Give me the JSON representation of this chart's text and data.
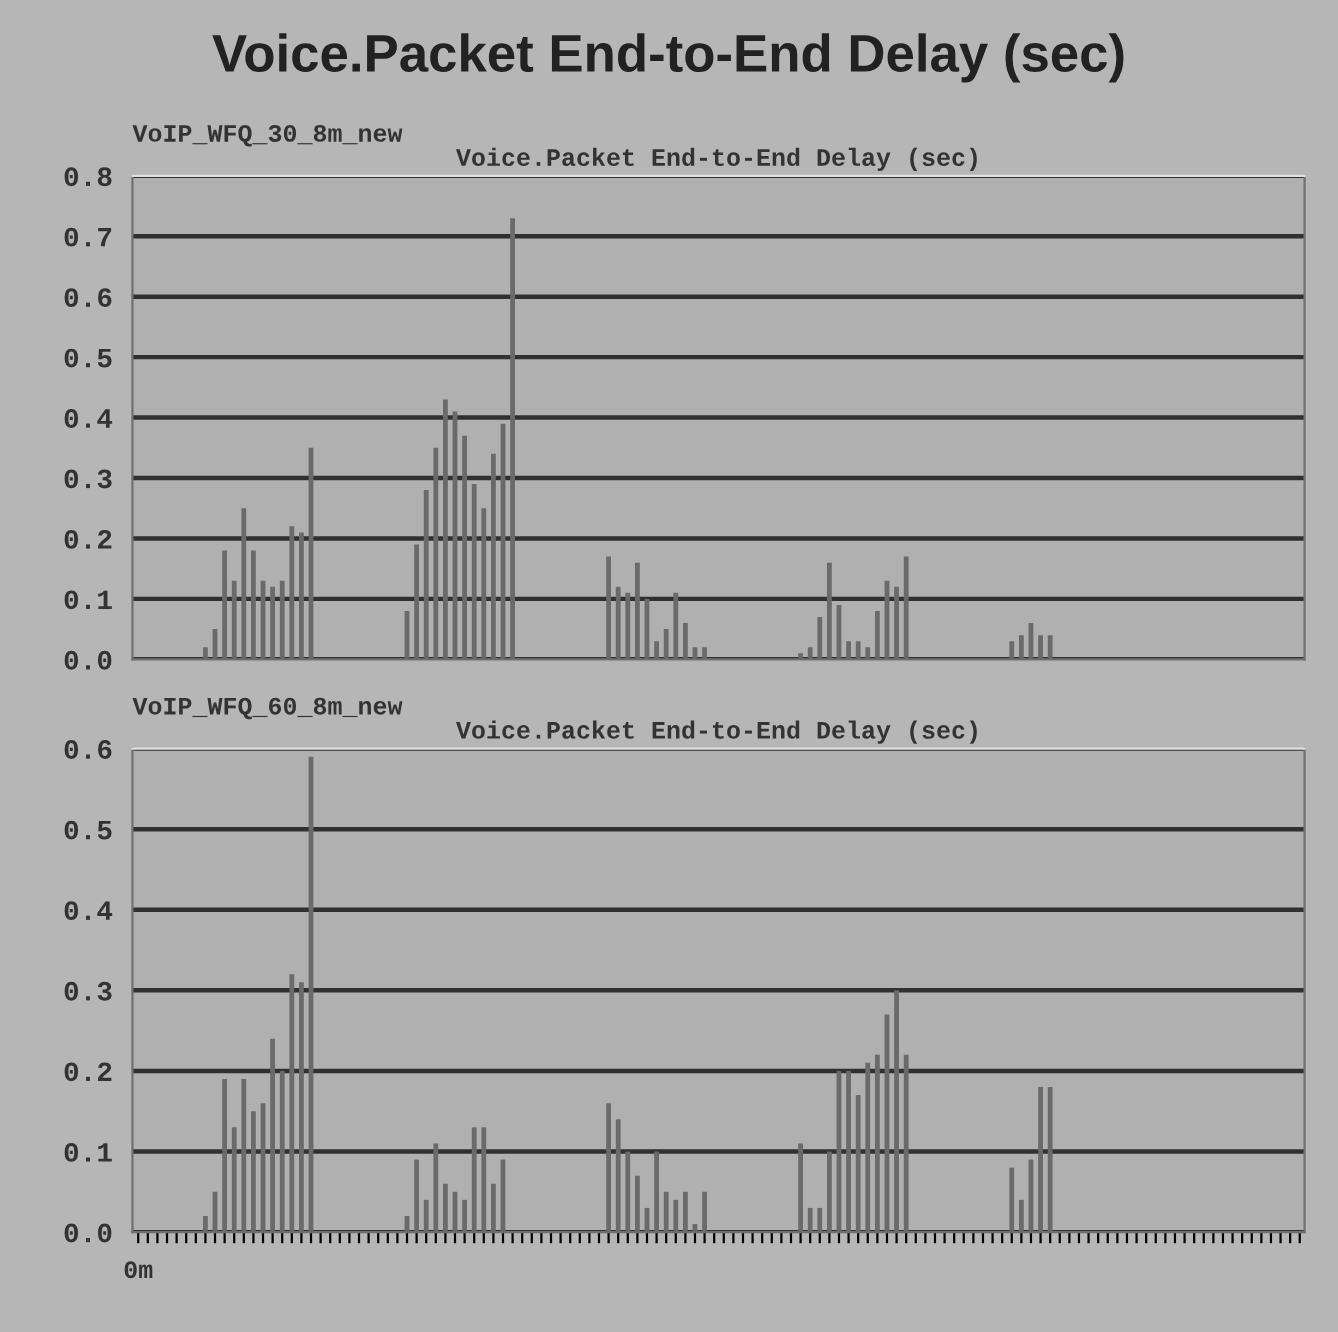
{
  "chart_data": [
    {
      "type": "bar",
      "title": "VoIP_WFQ_30_8m_new",
      "subtitle": "Voice.Packet End-to-End Delay (sec)",
      "annotations": [
        "Voice.Packet End-to-End Delay (sec)"
      ],
      "categories": [
        null,
        null,
        null,
        null,
        null,
        null,
        null,
        null,
        null,
        null,
        null,
        null,
        null,
        null,
        null,
        null,
        null,
        null,
        null,
        null,
        null,
        null,
        null,
        null,
        null,
        null,
        null,
        null,
        null,
        null,
        null,
        null,
        null,
        null,
        null,
        null,
        null,
        null,
        null,
        null,
        null,
        null,
        null,
        null,
        null,
        null,
        null,
        null,
        null,
        null,
        null,
        null,
        null,
        null,
        null,
        null,
        null,
        null,
        null,
        null,
        null,
        null,
        null,
        null,
        null,
        null,
        null,
        null,
        null,
        null,
        null,
        null,
        null,
        null,
        null,
        null,
        null,
        null,
        null,
        null,
        null,
        null,
        null,
        null,
        null,
        null,
        null,
        null,
        null,
        null,
        null,
        null,
        null,
        null,
        null,
        null,
        null,
        null,
        null,
        null,
        null,
        null,
        null,
        null,
        null,
        null,
        null,
        null,
        null,
        null,
        null,
        null,
        null,
        null,
        null,
        null,
        null,
        null,
        null,
        null,
        null,
        null
      ],
      "values": [
        null,
        null,
        null,
        null,
        null,
        null,
        null,
        0.02,
        0.05,
        0.18,
        0.13,
        0.25,
        0.18,
        0.13,
        0.12,
        0.13,
        0.22,
        0.21,
        0.35,
        null,
        null,
        null,
        null,
        null,
        null,
        null,
        null,
        null,
        0.08,
        0.19,
        0.28,
        0.35,
        0.43,
        0.41,
        0.37,
        0.29,
        0.25,
        0.34,
        0.39,
        0.73,
        null,
        null,
        null,
        null,
        null,
        null,
        null,
        null,
        null,
        0.17,
        0.12,
        0.11,
        0.16,
        0.1,
        0.03,
        0.05,
        0.11,
        0.06,
        0.02,
        0.02,
        null,
        null,
        null,
        null,
        null,
        null,
        null,
        null,
        null,
        0.01,
        0.02,
        0.07,
        0.16,
        0.09,
        0.03,
        0.03,
        0.02,
        0.08,
        0.13,
        0.12,
        0.17,
        null,
        null,
        null,
        null,
        null,
        null,
        null,
        null,
        null,
        null,
        0.03,
        0.04,
        0.06,
        0.04,
        0.04,
        null,
        null,
        null,
        null,
        null,
        null,
        null,
        null,
        null,
        null,
        null,
        null,
        null,
        null,
        null,
        null,
        null,
        null,
        null,
        null,
        null,
        null,
        null,
        null,
        null,
        null
      ],
      "color": "#6a6a6a",
      "ylim": [
        0,
        0.8
      ],
      "yticks": [
        {
          "value": 0,
          "label": "0.0"
        },
        0.1,
        0.2,
        0.3,
        0.4,
        0.5,
        0.6,
        0.7,
        0.8
      ],
      "grid": "y",
      "tick_labels": "y"
    },
    {
      "type": "bar",
      "title": "VoIP_WFQ_60_8m_new",
      "subtitle": "Voice.Packet End-to-End Delay (sec)",
      "categories": [
        "0m",
        null,
        null,
        null,
        null,
        null,
        null,
        null,
        null,
        null,
        null,
        null,
        null,
        null,
        null,
        null,
        null,
        null,
        null,
        null,
        null,
        null,
        null,
        null,
        null,
        null,
        null,
        null,
        null,
        null,
        null,
        null,
        null,
        null,
        null,
        null,
        null,
        null,
        null,
        null,
        null,
        null,
        null,
        null,
        null,
        null,
        null,
        null,
        null,
        null,
        null,
        null,
        null,
        null,
        null,
        null,
        null,
        null,
        null,
        null,
        null,
        null,
        null,
        null,
        null,
        null,
        null,
        null,
        null,
        null,
        null,
        null,
        null,
        null,
        null,
        null,
        null,
        null,
        null,
        null,
        null,
        null,
        null,
        null,
        null,
        null,
        null,
        null,
        null,
        null,
        null,
        null,
        null,
        null,
        null,
        null,
        null,
        null,
        null,
        null,
        null,
        null,
        null,
        null,
        null,
        null,
        null,
        null,
        null,
        null,
        null,
        null,
        null,
        null,
        null,
        null,
        null,
        null,
        null,
        null,
        null,
        null
      ],
      "values": [
        null,
        null,
        null,
        null,
        null,
        null,
        null,
        0.02,
        0.05,
        0.19,
        0.13,
        0.19,
        0.15,
        0.16,
        0.24,
        0.2,
        0.32,
        0.31,
        0.59,
        null,
        null,
        null,
        null,
        null,
        null,
        null,
        null,
        null,
        0.02,
        0.09,
        0.04,
        0.11,
        0.06,
        0.05,
        0.04,
        0.13,
        0.13,
        0.06,
        0.09,
        null,
        null,
        null,
        null,
        null,
        null,
        null,
        null,
        null,
        null,
        0.16,
        0.14,
        0.1,
        0.07,
        0.03,
        0.1,
        0.05,
        0.04,
        0.05,
        0.01,
        0.05,
        null,
        null,
        null,
        null,
        null,
        null,
        null,
        null,
        null,
        0.11,
        0.03,
        0.03,
        0.1,
        0.2,
        0.2,
        0.17,
        0.21,
        0.22,
        0.27,
        0.3,
        0.22,
        null,
        null,
        null,
        null,
        null,
        null,
        null,
        null,
        null,
        null,
        0.08,
        0.04,
        0.09,
        0.18,
        0.18,
        null,
        null,
        null,
        null,
        null,
        null,
        null,
        null,
        null,
        null,
        null,
        null,
        null,
        null,
        null,
        null,
        null,
        null,
        null,
        null,
        null,
        null,
        null,
        null,
        null,
        null
      ],
      "color": "#6a6a6a",
      "ylim": [
        0,
        0.6
      ],
      "yticks": [
        {
          "value": 0,
          "label": "0.0"
        },
        0.1,
        0.2,
        0.3,
        0.4,
        0.5,
        0.6
      ],
      "grid": "y"
    }
  ]
}
